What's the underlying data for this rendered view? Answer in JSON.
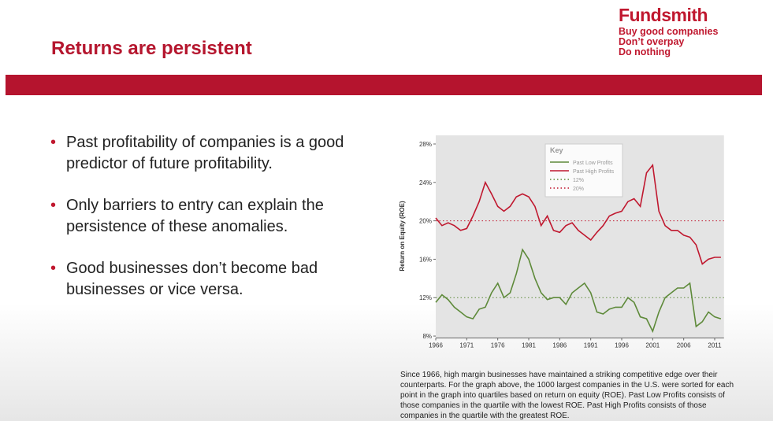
{
  "header": {
    "title": "Returns are persistent",
    "brand": "Fundsmith",
    "taglines": [
      "Buy good companies",
      "Don’t overpay",
      "Do nothing"
    ]
  },
  "bullets": [
    "Past profitability of companies is a good predictor of future profitability.",
    "Only barriers to entry can explain the persistence of these anomalies.",
    "Good businesses don’t become bad businesses or vice versa."
  ],
  "chart_data": {
    "type": "line",
    "ylabel": "Return on Equity (ROE)",
    "legend_title": "Key",
    "x": [
      1966,
      1967,
      1968,
      1969,
      1970,
      1971,
      1972,
      1973,
      1974,
      1975,
      1976,
      1977,
      1978,
      1979,
      1980,
      1981,
      1982,
      1983,
      1984,
      1985,
      1986,
      1987,
      1988,
      1989,
      1990,
      1991,
      1992,
      1993,
      1994,
      1995,
      1996,
      1997,
      1998,
      1999,
      2000,
      2001,
      2002,
      2003,
      2004,
      2005,
      2006,
      2007,
      2008,
      2009,
      2010,
      2011,
      2012
    ],
    "series": [
      {
        "name": "Past Low Profits",
        "color": "#5e8a3a",
        "values": [
          11.5,
          12.3,
          11.8,
          11.0,
          10.5,
          10.0,
          9.8,
          10.8,
          11.0,
          12.5,
          13.5,
          12.0,
          12.5,
          14.5,
          17.0,
          16.0,
          14.0,
          12.5,
          11.8,
          12.0,
          12.0,
          11.3,
          12.5,
          13.0,
          13.5,
          12.5,
          10.5,
          10.3,
          10.8,
          11.0,
          11.0,
          12.0,
          11.5,
          10.0,
          9.8,
          8.5,
          10.5,
          12.0,
          12.5,
          13.0,
          13.0,
          13.5,
          9.0,
          9.5,
          10.5,
          10.0,
          9.8
        ]
      },
      {
        "name": "Past High Profits",
        "color": "#c0182f",
        "values": [
          20.3,
          19.5,
          19.8,
          19.5,
          19.0,
          19.2,
          20.5,
          22.0,
          24.0,
          22.8,
          21.5,
          21.0,
          21.5,
          22.5,
          22.8,
          22.5,
          21.5,
          19.5,
          20.5,
          19.0,
          18.8,
          19.5,
          19.8,
          19.0,
          18.5,
          18.0,
          18.8,
          19.5,
          20.5,
          20.8,
          21.0,
          22.0,
          22.3,
          21.5,
          25.0,
          25.8,
          21.0,
          19.5,
          19.0,
          19.0,
          18.5,
          18.3,
          17.5,
          15.5,
          16.0,
          16.2,
          16.2
        ]
      }
    ],
    "reference_lines": [
      {
        "name": "12%",
        "value": 12,
        "color": "#5e8a3a"
      },
      {
        "name": "20%",
        "value": 20,
        "color": "#c0182f"
      }
    ],
    "xlim": [
      1966,
      2012.5
    ],
    "xticks": [
      1966,
      1971,
      1976,
      1981,
      1986,
      1991,
      1996,
      2001,
      2006,
      2011
    ],
    "ylim": [
      7.8,
      28.9
    ],
    "yticks": [
      {
        "value": 8,
        "label": "8%"
      },
      {
        "value": 12,
        "label": "12%"
      },
      {
        "value": 16,
        "label": "16%"
      },
      {
        "value": 20,
        "label": "20%"
      },
      {
        "value": 24,
        "label": "24%"
      },
      {
        "value": 28,
        "label": "28%"
      }
    ]
  },
  "caption": "Since 1966, high margin businesses have maintained a striking competitive edge over their counterparts. For the graph above, the 1000 largest companies in the U.S. were sorted for each point in the graph into quartiles based on return on equity (ROE). Past Low Profits consists of those companies in the quartile with the lowest ROE. Past High Profits consists of those companies in the quartile with the greatest ROE."
}
